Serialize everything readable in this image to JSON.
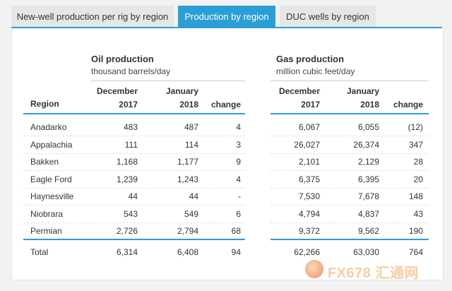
{
  "tabs": [
    {
      "label": "New-well production per rig by region",
      "active": false
    },
    {
      "label": "Production by region",
      "active": true
    },
    {
      "label": "DUC wells by region",
      "active": false
    }
  ],
  "oil": {
    "title": "Oil production",
    "unit": "thousand barrels/day"
  },
  "gas": {
    "title": "Gas production",
    "unit": "million cubic feet/day"
  },
  "columns": {
    "region": "Region",
    "dec_line1": "December",
    "dec_line2": "2017",
    "jan_line1": "January",
    "jan_line2": "2018",
    "change": "change"
  },
  "rows": [
    {
      "region": "Anadarko",
      "oil_dec": "483",
      "oil_jan": "487",
      "oil_chg": "4",
      "gas_dec": "6,067",
      "gas_jan": "6,055",
      "gas_chg": "(12)"
    },
    {
      "region": "Appalachia",
      "oil_dec": "111",
      "oil_jan": "114",
      "oil_chg": "3",
      "gas_dec": "26,027",
      "gas_jan": "26,374",
      "gas_chg": "347"
    },
    {
      "region": "Bakken",
      "oil_dec": "1,168",
      "oil_jan": "1,177",
      "oil_chg": "9",
      "gas_dec": "2,101",
      "gas_jan": "2,129",
      "gas_chg": "28"
    },
    {
      "region": "Eagle Ford",
      "oil_dec": "1,239",
      "oil_jan": "1,243",
      "oil_chg": "4",
      "gas_dec": "6,375",
      "gas_jan": "6,395",
      "gas_chg": "20"
    },
    {
      "region": "Haynesville",
      "oil_dec": "44",
      "oil_jan": "44",
      "oil_chg": "-",
      "gas_dec": "7,530",
      "gas_jan": "7,678",
      "gas_chg": "148"
    },
    {
      "region": "Niobrara",
      "oil_dec": "543",
      "oil_jan": "549",
      "oil_chg": "6",
      "gas_dec": "4,794",
      "gas_jan": "4,837",
      "gas_chg": "43"
    },
    {
      "region": "Permian",
      "oil_dec": "2,726",
      "oil_jan": "2,794",
      "oil_chg": "68",
      "gas_dec": "9,372",
      "gas_jan": "9,562",
      "gas_chg": "190"
    }
  ],
  "total": {
    "region": "Total",
    "oil_dec": "6,314",
    "oil_jan": "6,408",
    "oil_chg": "94",
    "gas_dec": "62,266",
    "gas_jan": "63,030",
    "gas_chg": "764"
  },
  "watermark": {
    "text": "FX678 汇通网"
  },
  "colors": {
    "accent": "#2a9fd6"
  }
}
